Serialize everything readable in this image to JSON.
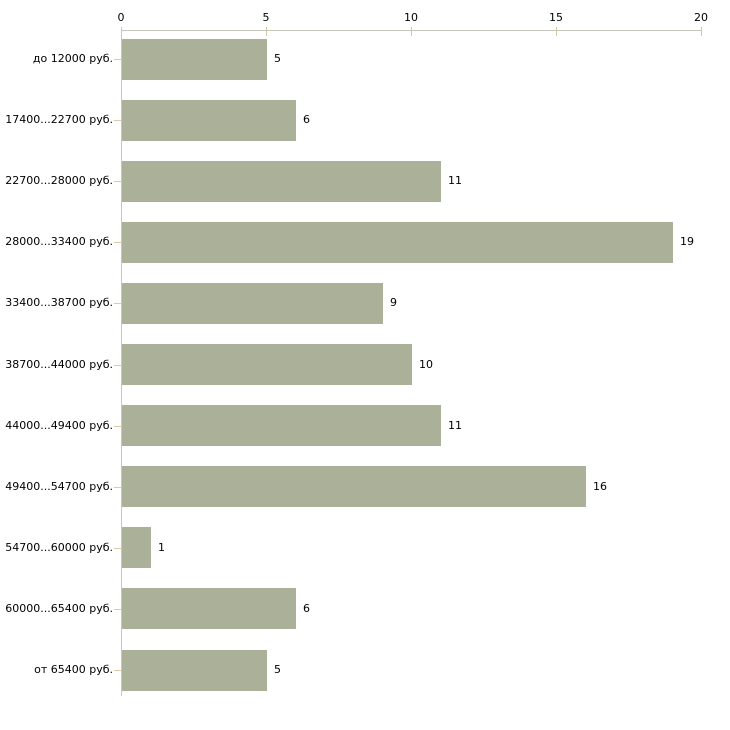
{
  "chart_data": {
    "type": "bar",
    "orientation": "horizontal",
    "title": "",
    "xlabel": "",
    "ylabel": "",
    "categories": [
      "до 12000 руб.",
      "17400...22700 руб.",
      "22700...28000 руб.",
      "28000...33400 руб.",
      "33400...38700 руб.",
      "38700...44000 руб.",
      "44000...49400 руб.",
      "49400...54700 руб.",
      "54700...60000 руб.",
      "60000...65400 руб.",
      "от 65400 руб."
    ],
    "values": [
      5,
      6,
      11,
      19,
      9,
      10,
      11,
      16,
      1,
      6,
      5
    ],
    "x_ticks": [
      0,
      5,
      10,
      15,
      20
    ],
    "xlim": [
      0,
      20
    ],
    "grid": false,
    "value_labels_shown": true,
    "legend": null,
    "colors": {
      "bar_fill": "#abb199",
      "axis_line": "#c6c6bd",
      "x_tick_mark": "#cfc99c",
      "category_tick_mark": "#dcc8ab",
      "text": "#000000",
      "background": "#ffffff"
    }
  }
}
